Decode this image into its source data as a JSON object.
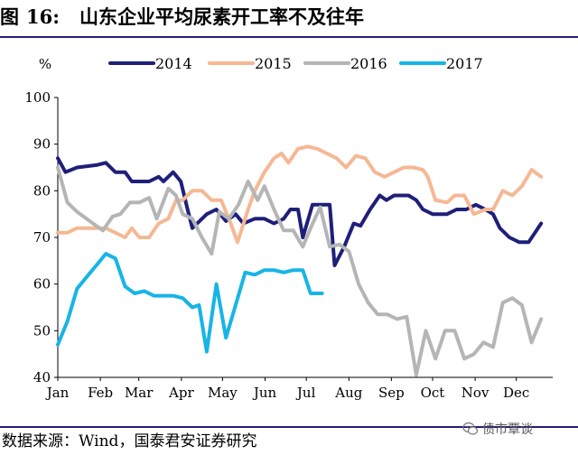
{
  "header": {
    "figure_label": "图",
    "figure_number": "16:",
    "title": "山东企业平均尿素开工率不及往年"
  },
  "source": "数据来源：Wind，国泰君安证券研究",
  "watermark": {
    "text": "债市覃谈",
    "icon": "wechat-icon"
  },
  "chart_data": {
    "type": "line",
    "title": "山东企业平均尿素开工率不及往年",
    "ylabel": "%",
    "ylim": [
      40,
      100
    ],
    "yticks": [
      40,
      50,
      60,
      70,
      80,
      90,
      100
    ],
    "xlim": [
      0,
      51.5
    ],
    "x_unit": "week",
    "xticks": [
      {
        "label": "Jan",
        "x": 0
      },
      {
        "label": "Feb",
        "x": 4.43
      },
      {
        "label": "Mar",
        "x": 8.43
      },
      {
        "label": "Apr",
        "x": 12.86
      },
      {
        "label": "May",
        "x": 17.14
      },
      {
        "label": "Jun",
        "x": 21.57
      },
      {
        "label": "Jul",
        "x": 25.86
      },
      {
        "label": "Aug",
        "x": 30.29
      },
      {
        "label": "Sep",
        "x": 34.71
      },
      {
        "label": "Oct",
        "x": 39
      },
      {
        "label": "Nov",
        "x": 43.43
      },
      {
        "label": "Dec",
        "x": 47.71
      }
    ],
    "grid": false,
    "legend_position": "top",
    "series": [
      {
        "name": "2014",
        "color": "#1f1f7a",
        "points": [
          [
            0,
            87
          ],
          [
            0.8,
            84
          ],
          [
            2,
            85
          ],
          [
            4,
            85.5
          ],
          [
            5,
            86
          ],
          [
            6,
            84
          ],
          [
            7,
            84
          ],
          [
            7.7,
            82
          ],
          [
            8.5,
            82
          ],
          [
            9.5,
            82
          ],
          [
            10.5,
            83
          ],
          [
            11,
            82
          ],
          [
            12,
            84
          ],
          [
            12.8,
            82
          ],
          [
            13.5,
            76
          ],
          [
            14,
            72
          ],
          [
            15.5,
            75
          ],
          [
            16.5,
            76
          ],
          [
            17.5,
            73.5
          ],
          [
            18.5,
            75
          ],
          [
            19.3,
            73
          ],
          [
            20.5,
            74
          ],
          [
            21.5,
            74
          ],
          [
            22.5,
            73
          ],
          [
            23.5,
            74
          ],
          [
            24.2,
            76
          ],
          [
            25,
            76
          ],
          [
            25.5,
            70
          ],
          [
            26.5,
            77
          ],
          [
            27.5,
            77
          ],
          [
            28.3,
            77
          ],
          [
            28.8,
            64
          ],
          [
            29.8,
            68
          ],
          [
            30.8,
            73
          ],
          [
            31.5,
            72.5
          ],
          [
            32.5,
            76
          ],
          [
            33.5,
            79
          ],
          [
            34.2,
            78
          ],
          [
            35,
            79
          ],
          [
            35.8,
            79
          ],
          [
            36.5,
            79
          ],
          [
            37.3,
            78
          ],
          [
            38,
            76
          ],
          [
            39,
            75
          ],
          [
            40.5,
            75
          ],
          [
            41.5,
            76
          ],
          [
            42.5,
            76
          ],
          [
            43.5,
            77
          ],
          [
            44.5,
            76
          ],
          [
            45.3,
            75
          ],
          [
            46,
            72
          ],
          [
            47,
            70
          ],
          [
            48,
            69
          ],
          [
            49,
            69
          ],
          [
            50.3,
            73
          ]
        ]
      },
      {
        "name": "2015",
        "color": "#f5b894",
        "points": [
          [
            0,
            71
          ],
          [
            1,
            71
          ],
          [
            2,
            72
          ],
          [
            3,
            72
          ],
          [
            4,
            72
          ],
          [
            5,
            72
          ],
          [
            6,
            71
          ],
          [
            7,
            70
          ],
          [
            7.7,
            72
          ],
          [
            8.5,
            70
          ],
          [
            9.5,
            70
          ],
          [
            10.5,
            73
          ],
          [
            11.5,
            74
          ],
          [
            12.3,
            78
          ],
          [
            13,
            78
          ],
          [
            14,
            80
          ],
          [
            15,
            80
          ],
          [
            16,
            78
          ],
          [
            17,
            78
          ],
          [
            18,
            73
          ],
          [
            18.7,
            69
          ],
          [
            19.8,
            76
          ],
          [
            20.5,
            80
          ],
          [
            21.5,
            84
          ],
          [
            22.5,
            87
          ],
          [
            23.3,
            88
          ],
          [
            24,
            86
          ],
          [
            25,
            89
          ],
          [
            26,
            89.5
          ],
          [
            27,
            89
          ],
          [
            28,
            88
          ],
          [
            29,
            87
          ],
          [
            30,
            85
          ],
          [
            31,
            87.5
          ],
          [
            32,
            87
          ],
          [
            33,
            84
          ],
          [
            34,
            83
          ],
          [
            35,
            84
          ],
          [
            36,
            85
          ],
          [
            37,
            85
          ],
          [
            38,
            84.5
          ],
          [
            38.5,
            83
          ],
          [
            39.3,
            78
          ],
          [
            40.5,
            77.5
          ],
          [
            41.3,
            79
          ],
          [
            42.3,
            79
          ],
          [
            43.3,
            75
          ],
          [
            44.5,
            76
          ],
          [
            45.3,
            76
          ],
          [
            46.3,
            80
          ],
          [
            47.3,
            79
          ],
          [
            48.3,
            81
          ],
          [
            49.3,
            84.5
          ],
          [
            50.3,
            83
          ]
        ]
      },
      {
        "name": "2016",
        "color": "#b5b5b5",
        "points": [
          [
            0,
            85
          ],
          [
            1,
            77.5
          ],
          [
            2,
            75.5
          ],
          [
            3,
            74
          ],
          [
            4,
            72.5
          ],
          [
            4.7,
            71.5
          ],
          [
            5.7,
            74.5
          ],
          [
            6.5,
            75
          ],
          [
            7.5,
            77.5
          ],
          [
            8.5,
            77.5
          ],
          [
            9.5,
            78.5
          ],
          [
            10.3,
            74
          ],
          [
            11.5,
            80.5
          ],
          [
            12.3,
            79
          ],
          [
            13,
            75
          ],
          [
            14,
            74
          ],
          [
            15,
            70
          ],
          [
            16,
            66.5
          ],
          [
            16.8,
            75.5
          ],
          [
            17.8,
            74
          ],
          [
            18.8,
            77
          ],
          [
            19.8,
            82
          ],
          [
            20.8,
            78
          ],
          [
            21.5,
            81
          ],
          [
            22.5,
            76
          ],
          [
            23.5,
            71.5
          ],
          [
            24.5,
            71.5
          ],
          [
            25.5,
            68
          ],
          [
            26.3,
            72
          ],
          [
            27.3,
            76.5
          ],
          [
            28.3,
            68
          ],
          [
            29.3,
            68.5
          ],
          [
            30.3,
            67
          ],
          [
            31.3,
            60
          ],
          [
            32.3,
            56
          ],
          [
            33.3,
            53.5
          ],
          [
            34.3,
            53.5
          ],
          [
            35.3,
            52.5
          ],
          [
            36.3,
            53
          ],
          [
            37.3,
            40.5
          ],
          [
            38.3,
            50
          ],
          [
            39.3,
            44
          ],
          [
            40.3,
            50
          ],
          [
            41.3,
            50
          ],
          [
            42.3,
            44
          ],
          [
            43.3,
            45
          ],
          [
            44.3,
            47.5
          ],
          [
            45.3,
            46.5
          ],
          [
            46.3,
            56
          ],
          [
            47.3,
            57
          ],
          [
            48.3,
            55.5
          ],
          [
            49.3,
            47.5
          ],
          [
            50.3,
            52.5
          ]
        ]
      },
      {
        "name": "2017",
        "color": "#18b4e6",
        "points": [
          [
            0,
            47
          ],
          [
            1,
            52
          ],
          [
            2,
            59
          ],
          [
            3,
            61.5
          ],
          [
            4,
            64
          ],
          [
            5,
            66.5
          ],
          [
            6,
            65.5
          ],
          [
            7,
            59.5
          ],
          [
            8,
            58
          ],
          [
            9,
            58.5
          ],
          [
            10,
            57.5
          ],
          [
            11,
            57.5
          ],
          [
            12,
            57.5
          ],
          [
            13,
            57
          ],
          [
            14,
            55
          ],
          [
            14.7,
            55.5
          ],
          [
            15.5,
            45.5
          ],
          [
            16.5,
            60
          ],
          [
            17.5,
            48.5
          ],
          [
            18.5,
            55.5
          ],
          [
            19.5,
            62.5
          ],
          [
            20.5,
            62
          ],
          [
            21.5,
            63
          ],
          [
            22.5,
            63
          ],
          [
            23.5,
            62.5
          ],
          [
            24.5,
            63
          ],
          [
            25.5,
            63
          ],
          [
            26.3,
            58
          ],
          [
            27.5,
            58
          ]
        ]
      }
    ]
  }
}
